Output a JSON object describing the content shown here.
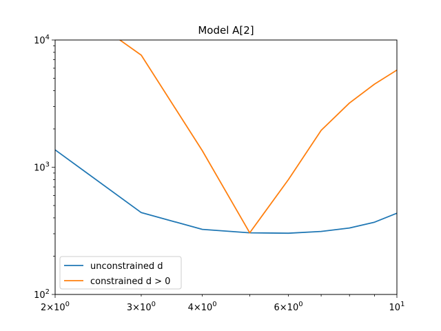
{
  "chart_data": {
    "type": "line",
    "title": "Model A[2]",
    "xlabel": "",
    "ylabel": "",
    "xscale": "log",
    "yscale": "log",
    "xlim": [
      2,
      10
    ],
    "ylim": [
      100,
      10000
    ],
    "grid": false,
    "legend_position": "lower-left",
    "x_major_ticks": [
      {
        "value": 2,
        "base": "2",
        "exp": "0"
      },
      {
        "value": 10,
        "base": "10",
        "exp": "1"
      }
    ],
    "x_minor_ticks": [
      {
        "value": 3,
        "base": "3",
        "exp": "0"
      },
      {
        "value": 4,
        "base": "4",
        "exp": "0"
      },
      {
        "value": 6,
        "base": "6",
        "exp": "0"
      }
    ],
    "y_major_ticks": [
      {
        "value": 100,
        "base": "10",
        "exp": "2"
      },
      {
        "value": 1000,
        "base": "10",
        "exp": "3"
      },
      {
        "value": 10000,
        "base": "10",
        "exp": "4"
      }
    ],
    "series": [
      {
        "name": "unconstrained d",
        "color": "#1f77b4",
        "x": [
          2,
          3,
          4,
          5,
          6,
          7,
          8,
          9,
          10
        ],
        "values": [
          1370,
          440,
          325,
          305,
          303,
          313,
          333,
          370,
          435
        ]
      },
      {
        "name": "constrained d > 0",
        "color": "#ff7f0e",
        "x": [
          2,
          3,
          4,
          5,
          6,
          7,
          8,
          9,
          10
        ],
        "values": [
          23000,
          7600,
          1350,
          305,
          800,
          1950,
          3200,
          4500,
          5800
        ]
      }
    ]
  }
}
